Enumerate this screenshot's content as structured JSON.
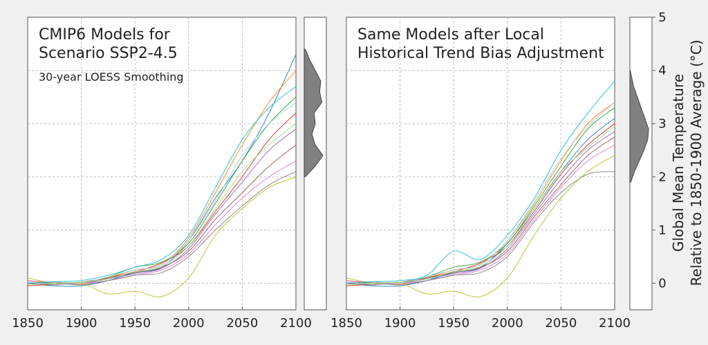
{
  "figure": {
    "left_title_line1": "CMIP6 Models for",
    "left_title_line2": "Scenario SSP2-4.5",
    "left_subtitle": "30-year LOESS Smoothing",
    "right_title_line1": "Same Models after Local",
    "right_title_line2": "Historical Trend Bias Adjustment",
    "ylabel_line1": "Global Mean Temperature",
    "ylabel_line2": "Relative to 1850-1900 Average (°C)"
  },
  "colors": {
    "background": "#f0f0f0",
    "panel": "#ffffff",
    "grid": "#bbbbbb",
    "density_fill": "#808080",
    "highlight_model": "#1f77b4",
    "series_palette": [
      "#1f77b4",
      "#ff7f0e",
      "#2ca02c",
      "#d62728",
      "#9467bd",
      "#8c564b",
      "#e377c2",
      "#7f7f7f",
      "#bcbd22",
      "#17becf",
      "#aec7e8",
      "#98df8a"
    ]
  },
  "chart_data": [
    {
      "type": "line",
      "panel": "left",
      "title": "CMIP6 Models for Scenario SSP2-4.5",
      "subtitle": "30-year LOESS Smoothing",
      "xlim": [
        1850,
        2100
      ],
      "ylim": [
        -0.5,
        5
      ],
      "xticks": [
        1850,
        1900,
        1950,
        2000,
        2050,
        2100
      ],
      "yticks": [
        0,
        1,
        2,
        3,
        4,
        5
      ],
      "grid": true,
      "x": [
        1850,
        1875,
        1900,
        1925,
        1950,
        1975,
        2000,
        2025,
        2050,
        2075,
        2100
      ],
      "series": [
        {
          "values": [
            0.0,
            -0.05,
            -0.05,
            0.05,
            0.2,
            0.3,
            0.8,
            1.6,
            2.3,
            3.2,
            4.3
          ]
        },
        {
          "values": [
            0.05,
            0.0,
            -0.02,
            0.1,
            0.25,
            0.35,
            0.85,
            1.7,
            2.6,
            3.4,
            4.0
          ]
        },
        {
          "values": [
            0.0,
            0.02,
            0.0,
            0.12,
            0.3,
            0.4,
            0.75,
            1.5,
            2.3,
            3.0,
            3.5
          ]
        },
        {
          "values": [
            -0.05,
            -0.02,
            0.02,
            0.1,
            0.22,
            0.38,
            0.7,
            1.35,
            2.0,
            2.7,
            3.2
          ]
        },
        {
          "values": [
            0.02,
            0.0,
            0.0,
            0.08,
            0.18,
            0.28,
            0.65,
            1.3,
            1.9,
            2.5,
            2.9
          ]
        },
        {
          "values": [
            0.0,
            -0.03,
            0.02,
            0.1,
            0.2,
            0.3,
            0.6,
            1.2,
            1.7,
            2.2,
            2.6
          ]
        },
        {
          "values": [
            0.05,
            0.02,
            0.0,
            0.05,
            0.15,
            0.25,
            0.55,
            1.1,
            1.6,
            2.0,
            2.3
          ]
        },
        {
          "values": [
            0.0,
            0.0,
            -0.03,
            0.05,
            0.15,
            0.2,
            0.5,
            1.0,
            1.45,
            1.85,
            2.1
          ]
        },
        {
          "values": [
            0.1,
            0.0,
            0.0,
            -0.2,
            -0.15,
            -0.25,
            0.1,
            0.9,
            1.4,
            1.8,
            2.0
          ]
        },
        {
          "values": [
            0.0,
            0.03,
            0.05,
            0.15,
            0.3,
            0.45,
            0.9,
            1.8,
            2.7,
            3.3,
            3.7
          ]
        },
        {
          "values": [
            0.02,
            -0.02,
            0.0,
            0.12,
            0.25,
            0.35,
            0.8,
            1.55,
            2.4,
            3.0,
            3.4
          ]
        },
        {
          "values": [
            -0.03,
            0.0,
            0.02,
            0.08,
            0.22,
            0.32,
            0.7,
            1.4,
            2.1,
            2.6,
            3.0
          ]
        }
      ],
      "distribution": {
        "y": [
          2.0,
          2.2,
          2.4,
          2.6,
          2.8,
          3.0,
          3.2,
          3.4,
          3.6,
          3.8,
          4.0,
          4.2,
          4.4
        ],
        "density": [
          0.05,
          0.5,
          0.85,
          0.5,
          0.35,
          0.5,
          0.45,
          0.8,
          0.7,
          0.75,
          0.5,
          0.25,
          0.05
        ]
      }
    },
    {
      "type": "line",
      "panel": "right",
      "title": "Same Models after Local Historical Trend Bias Adjustment",
      "xlim": [
        1850,
        2100
      ],
      "ylim": [
        -0.5,
        5
      ],
      "xticks": [
        1850,
        1900,
        1950,
        2000,
        2050,
        2100
      ],
      "yticks": [
        0,
        1,
        2,
        3,
        4,
        5
      ],
      "grid": true,
      "x": [
        1850,
        1875,
        1900,
        1925,
        1950,
        1975,
        2000,
        2025,
        2050,
        2075,
        2100
      ],
      "series": [
        {
          "values": [
            0.0,
            -0.05,
            -0.05,
            0.05,
            0.2,
            0.3,
            0.75,
            1.4,
            2.1,
            2.7,
            3.1
          ]
        },
        {
          "values": [
            0.05,
            0.0,
            -0.02,
            0.1,
            0.25,
            0.35,
            0.8,
            1.5,
            2.3,
            3.0,
            3.4
          ]
        },
        {
          "values": [
            0.0,
            0.02,
            0.0,
            0.12,
            0.3,
            0.4,
            0.75,
            1.45,
            2.2,
            2.9,
            3.3
          ]
        },
        {
          "values": [
            -0.05,
            -0.02,
            0.02,
            0.1,
            0.22,
            0.38,
            0.7,
            1.35,
            2.05,
            2.6,
            3.0
          ]
        },
        {
          "values": [
            0.02,
            0.0,
            0.0,
            0.08,
            0.18,
            0.28,
            0.65,
            1.3,
            1.95,
            2.5,
            2.85
          ]
        },
        {
          "values": [
            0.0,
            -0.03,
            0.02,
            0.1,
            0.2,
            0.3,
            0.6,
            1.25,
            1.85,
            2.4,
            2.75
          ]
        },
        {
          "values": [
            0.05,
            0.02,
            0.0,
            0.05,
            0.15,
            0.25,
            0.55,
            1.2,
            1.8,
            2.3,
            2.6
          ]
        },
        {
          "values": [
            0.0,
            0.0,
            -0.03,
            0.05,
            0.15,
            0.2,
            0.5,
            1.15,
            1.7,
            2.05,
            2.1
          ]
        },
        {
          "values": [
            0.1,
            0.0,
            0.0,
            -0.2,
            -0.15,
            -0.25,
            0.1,
            0.9,
            1.6,
            2.1,
            2.4
          ]
        },
        {
          "values": [
            0.0,
            0.03,
            0.05,
            0.15,
            0.6,
            0.45,
            0.9,
            1.6,
            2.5,
            3.2,
            3.8
          ]
        },
        {
          "values": [
            0.02,
            -0.02,
            0.0,
            0.12,
            0.25,
            0.35,
            0.8,
            1.55,
            2.35,
            2.95,
            3.4
          ]
        },
        {
          "values": [
            -0.03,
            0.0,
            0.02,
            0.08,
            0.22,
            0.32,
            0.7,
            1.4,
            2.1,
            2.55,
            2.95
          ]
        }
      ],
      "distribution": {
        "y": [
          1.9,
          2.1,
          2.3,
          2.5,
          2.7,
          2.9,
          3.1,
          3.3,
          3.5,
          3.7,
          3.9,
          4.0
        ],
        "density": [
          0.05,
          0.25,
          0.5,
          0.75,
          0.95,
          1.0,
          0.8,
          0.6,
          0.4,
          0.2,
          0.08,
          0.02
        ]
      }
    }
  ]
}
